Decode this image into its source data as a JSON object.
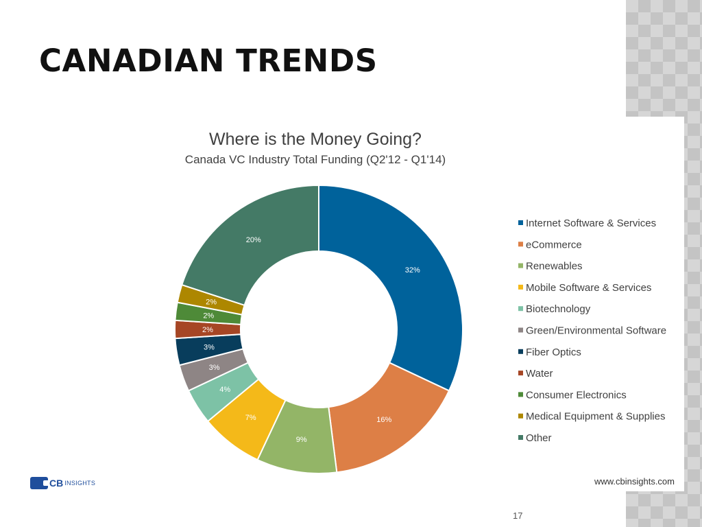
{
  "slide": {
    "title": "CANADIAN TRENDS",
    "page_number": "17",
    "logo": {
      "cb": "CB",
      "insights": "INSIGHTS"
    }
  },
  "chart_data": {
    "type": "pie",
    "style": "donut",
    "title": "Where is the Money Going?",
    "subtitle": "Canada VC Industry Total Funding (Q2'12 - Q1'14)",
    "source": "www.cbinsights.com",
    "legend_position": "right",
    "slices": [
      {
        "name": "Internet Software & Services",
        "value": 32,
        "label": "32%",
        "color": "#00629b"
      },
      {
        "name": "eCommerce",
        "value": 16,
        "label": "16%",
        "color": "#dd7f46"
      },
      {
        "name": "Renewables",
        "value": 9,
        "label": "9%",
        "color": "#93b567"
      },
      {
        "name": "Mobile Software & Services",
        "value": 7,
        "label": "7%",
        "color": "#f4b919"
      },
      {
        "name": "Biotechnology",
        "value": 4,
        "label": "4%",
        "color": "#7dc2a6"
      },
      {
        "name": "Green/Environmental Software",
        "value": 3,
        "label": "3%",
        "color": "#8e8585"
      },
      {
        "name": "Fiber Optics",
        "value": 3,
        "label": "3%",
        "color": "#083d5c"
      },
      {
        "name": "Water",
        "value": 2,
        "label": "2%",
        "color": "#a64625"
      },
      {
        "name": "Consumer Electronics",
        "value": 2,
        "label": "2%",
        "color": "#4e8a38"
      },
      {
        "name": "Medical Equipment & Supplies",
        "value": 2,
        "label": "2%",
        "color": "#ad8700"
      },
      {
        "name": "Other",
        "value": 20,
        "label": "20%",
        "color": "#447a66"
      }
    ]
  }
}
